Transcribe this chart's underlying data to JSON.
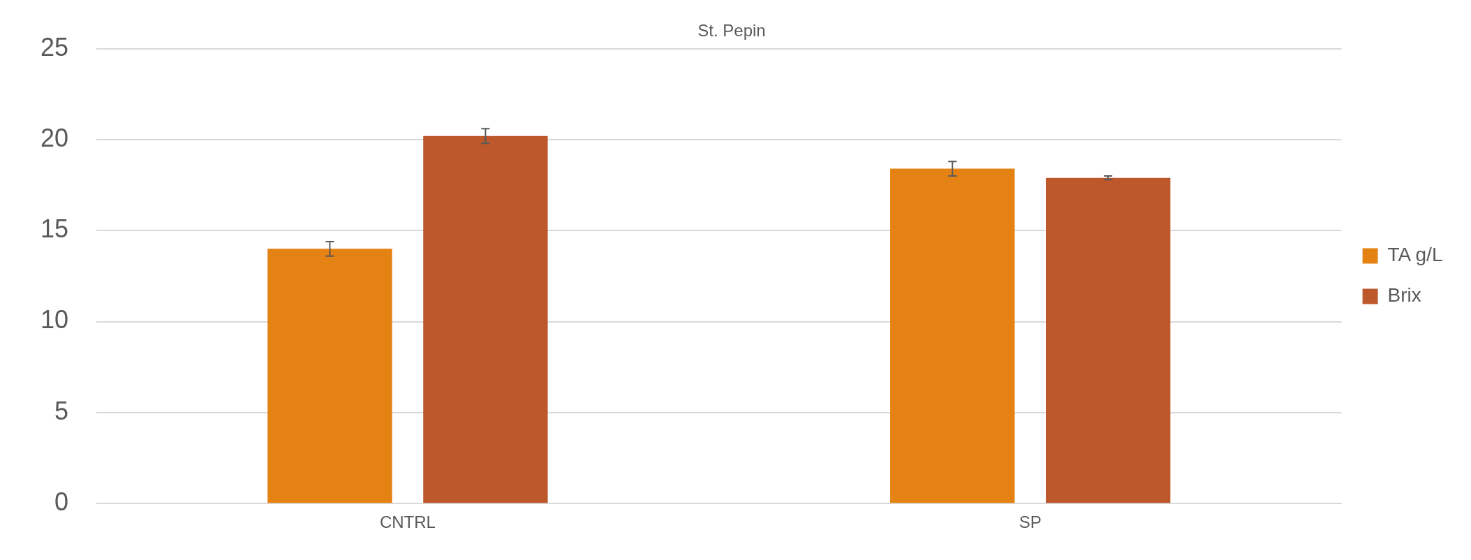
{
  "chart_data": {
    "type": "bar",
    "title": "St. Pepin",
    "categories": [
      "CNTRL",
      "SP"
    ],
    "series": [
      {
        "name": "TA g/L",
        "color": "#e48213",
        "values": [
          14.0,
          18.4
        ],
        "errors": [
          0.4,
          0.4
        ]
      },
      {
        "name": "Brix",
        "color": "#bc582c",
        "values": [
          20.2,
          17.9
        ],
        "errors": [
          0.4,
          0.1
        ]
      }
    ],
    "ylim": [
      0,
      25
    ],
    "yticks": [
      0,
      5,
      10,
      15,
      20,
      25
    ],
    "grid": "y",
    "legend": "right"
  }
}
